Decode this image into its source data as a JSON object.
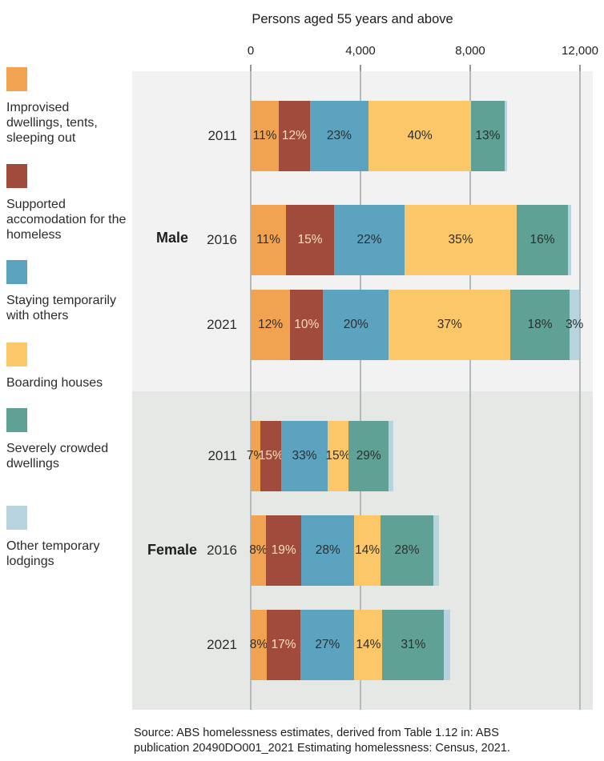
{
  "chart_data": {
    "type": "stacked_bar_horizontal",
    "title": "Persons aged 55 years and above",
    "x_axis": {
      "tick_labels": [
        "0",
        "4,000",
        "8,000",
        "12,000"
      ],
      "tick_values": [
        0,
        4000,
        8000,
        12000
      ],
      "range": [
        0,
        12000
      ],
      "grid": true
    },
    "legend_position": "left",
    "legend": [
      {
        "label": "Improvised dwellings, tents, sleeping out",
        "color": "#F2A351"
      },
      {
        "label": "Supported accomodation for the homeless",
        "color": "#A04B3B"
      },
      {
        "label": "Staying temporarily with others",
        "color": "#5BA3BF"
      },
      {
        "label": "Boarding houses",
        "color": "#FBC768"
      },
      {
        "label": "Severely crowded dwellings",
        "color": "#5FA295"
      },
      {
        "label": "Other temporary lodgings",
        "color": "#B7D3DE"
      }
    ],
    "groups": [
      {
        "name": "Male",
        "section_background": "#F1F2F1",
        "rows": [
          {
            "year": "2011",
            "total_persons_approx": 9340,
            "values_pct": [
              11,
              12,
              23,
              40,
              13,
              1
            ],
            "value_labels": [
              "11%",
              "12%",
              "23%",
              "40%",
              "13%",
              ""
            ]
          },
          {
            "year": "2016",
            "total_persons_approx": 11680,
            "values_pct": [
              11,
              15,
              22,
              35,
              16,
              1
            ],
            "value_labels": [
              "11%",
              "15%",
              "22%",
              "35%",
              "16%",
              ""
            ]
          },
          {
            "year": "2021",
            "total_persons_approx": 11980,
            "values_pct": [
              12,
              10,
              20,
              37,
              18,
              3
            ],
            "value_labels": [
              "12%",
              "10%",
              "20%",
              "37%",
              "18%",
              "3%"
            ]
          }
        ]
      },
      {
        "name": "Female",
        "section_background": "#E6E8E6",
        "rows": [
          {
            "year": "2011",
            "total_persons_approx": 5190,
            "values_pct": [
              7,
              15,
              33,
              15,
              29,
              3
            ],
            "value_labels": [
              "7%",
              "15%",
              "33%",
              "15%",
              "29%",
              ""
            ]
          },
          {
            "year": "2016",
            "total_persons_approx": 6860,
            "values_pct": [
              8,
              19,
              28,
              14,
              28,
              3
            ],
            "value_labels": [
              "8%",
              "19%",
              "28%",
              "14%",
              "28%",
              ""
            ]
          },
          {
            "year": "2021",
            "total_persons_approx": 7270,
            "values_pct": [
              8,
              17,
              27,
              14,
              31,
              3
            ],
            "value_labels": [
              "8%",
              "17%",
              "27%",
              "14%",
              "31%",
              ""
            ]
          }
        ]
      }
    ],
    "label_text_color_dark": "#2e2e2e",
    "label_text_color_light": "#F6E0BD",
    "source": "Source: ABS homelessness estimates, derived from Table 1.12 in: ABS publication 20490DO001_2021 Estimating homelessness: Census, 2021."
  }
}
